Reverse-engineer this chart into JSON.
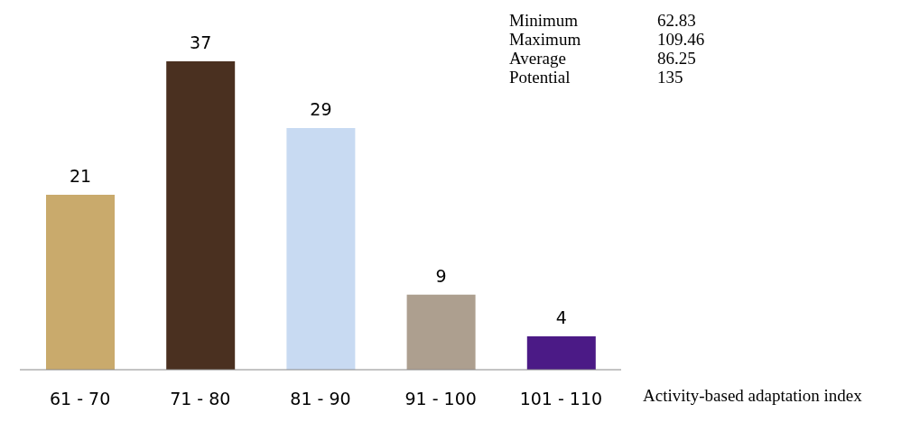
{
  "chart_data": {
    "type": "bar",
    "categories": [
      "61 - 70",
      "71 - 80",
      "81 - 90",
      "91 - 100",
      "101 - 110"
    ],
    "values": [
      21,
      37,
      29,
      9,
      4
    ],
    "colors": [
      "#c9aa6c",
      "#4a3020",
      "#c8daf2",
      "#ad9f8f",
      "#4b1a86"
    ],
    "data_labels": true,
    "xlabel": "Activity-based adaptation index",
    "annotations": [
      "Minimum\t62.83",
      "Maximum\t109.46",
      "Average\t86.25",
      "Potential\t135"
    ]
  }
}
